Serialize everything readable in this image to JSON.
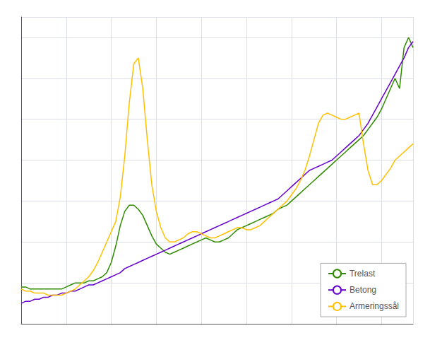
{
  "chart_data": {
    "type": "line",
    "x": [
      0,
      1,
      2,
      3,
      4,
      5,
      6,
      7,
      8,
      9,
      10,
      11,
      12,
      13,
      14,
      15,
      16,
      17,
      18,
      19,
      20,
      21,
      22,
      23,
      24,
      25,
      26,
      27,
      28,
      29,
      30,
      31,
      32,
      33,
      34,
      35,
      36,
      37,
      38,
      39,
      40,
      41,
      42,
      43,
      44,
      45,
      46,
      47,
      48,
      49,
      50,
      51,
      52,
      53,
      54,
      55,
      56,
      57,
      58,
      59,
      60,
      61,
      62,
      63,
      64,
      65,
      66,
      67,
      68,
      69,
      70,
      71,
      72,
      73,
      74,
      75,
      76,
      77,
      78,
      79,
      80,
      81,
      82,
      83,
      84,
      85,
      86,
      87
    ],
    "series": [
      {
        "name": "Trelast",
        "color": "#2e8b00",
        "values": [
          98,
          98,
          97,
          97,
          97,
          97,
          97,
          97,
          97,
          97,
          98,
          99,
          100,
          100,
          100,
          101,
          101,
          102,
          103,
          105,
          110,
          118,
          128,
          135,
          138,
          138,
          136,
          133,
          128,
          123,
          119,
          117,
          115,
          114,
          115,
          116,
          117,
          118,
          119,
          120,
          121,
          122,
          121,
          120,
          120,
          121,
          122,
          124,
          126,
          127,
          128,
          129,
          130,
          131,
          132,
          133,
          134,
          136,
          137,
          138,
          140,
          142,
          144,
          146,
          148,
          150,
          152,
          154,
          156,
          158,
          160,
          162,
          164,
          166,
          168,
          170,
          172,
          175,
          178,
          181,
          185,
          190,
          195,
          200,
          195,
          215,
          220,
          215
        ]
      },
      {
        "name": "Betong",
        "color": "#6600cc",
        "values": [
          90,
          91,
          91,
          92,
          92,
          93,
          93,
          94,
          94,
          95,
          95,
          96,
          96,
          97,
          98,
          99,
          99,
          100,
          101,
          102,
          103,
          104,
          105,
          107,
          108,
          109,
          110,
          111,
          112,
          113,
          114,
          115,
          116,
          117,
          118,
          119,
          120,
          121,
          122,
          123,
          124,
          125,
          126,
          127,
          128,
          129,
          130,
          131,
          132,
          133,
          134,
          135,
          136,
          137,
          138,
          139,
          140,
          141,
          143,
          145,
          147,
          149,
          151,
          153,
          155,
          156,
          157,
          158,
          159,
          160,
          162,
          164,
          166,
          168,
          170,
          172,
          175,
          178,
          182,
          186,
          190,
          194,
          198,
          202,
          206,
          210,
          215,
          218
        ]
      },
      {
        "name": "Armeringssål",
        "color": "#ffc000",
        "values": [
          97,
          96,
          96,
          95,
          95,
          95,
          94,
          94,
          94,
          94,
          95,
          96,
          97,
          99,
          101,
          103,
          106,
          110,
          115,
          120,
          125,
          130,
          142,
          162,
          188,
          207,
          210,
          195,
          170,
          148,
          135,
          127,
          122,
          120,
          120,
          121,
          122,
          124,
          125,
          125,
          124,
          123,
          122,
          122,
          123,
          124,
          125,
          126,
          127,
          127,
          126,
          126,
          127,
          128,
          130,
          132,
          134,
          136,
          138,
          140,
          143,
          146,
          150,
          155,
          162,
          170,
          178,
          182,
          183,
          182,
          181,
          180,
          180,
          181,
          182,
          183,
          168,
          155,
          148,
          148,
          150,
          153,
          156,
          160,
          162,
          164,
          166,
          168
        ]
      }
    ],
    "xlim": [
      0,
      87
    ],
    "xticks": [
      0,
      10,
      20,
      30,
      40,
      50,
      60,
      70,
      80
    ],
    "ylim": [
      80,
      230
    ],
    "yticks": [
      80,
      100,
      120,
      140,
      160,
      180,
      200,
      220
    ],
    "grid": true,
    "legend": "lower right",
    "tick_labels": false
  }
}
